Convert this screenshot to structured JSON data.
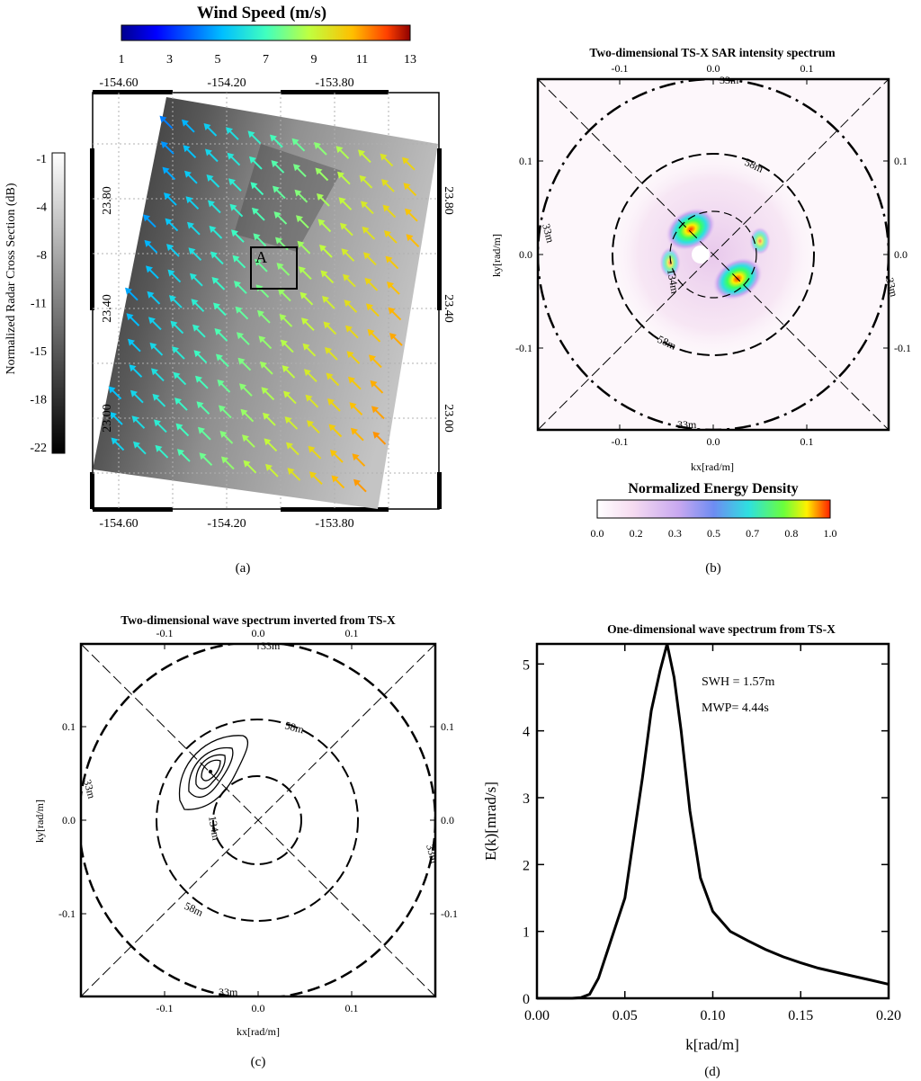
{
  "panel_a": {
    "colorbar_title": "Wind Speed (m/s)",
    "colorbar_ticks": [
      "1",
      "3",
      "5",
      "7",
      "9",
      "11",
      "13"
    ],
    "nrcs_label": "Normalized Radar Cross Section (dB)",
    "nrcs_ticks": [
      "-1",
      "-4",
      "-8",
      "-11",
      "-15",
      "-18",
      "-22"
    ],
    "lon_ticks": [
      "-154.60",
      "-154.20",
      "-153.80"
    ],
    "lat_ticks": [
      "23.80",
      "23.40",
      "23.00"
    ],
    "box_label": "A",
    "caption": "(a)"
  },
  "panel_b": {
    "title": "Two-dimensional TS-X SAR intensity spectrum",
    "xlabel": "kx[rad/m]",
    "ylabel": "ky[rad/m]",
    "ticks": [
      "-0.1",
      "0.0",
      "0.1"
    ],
    "ring_labels": [
      "33m",
      "58m",
      "134m"
    ],
    "colorbar_title": "Normalized Energy Density",
    "colorbar_ticks": [
      "0.0",
      "0.2",
      "0.3",
      "0.5",
      "0.7",
      "0.8",
      "1.0"
    ],
    "caption": "(b)"
  },
  "panel_c": {
    "title": "Two-dimensional wave spectrum inverted from TS-X",
    "xlabel": "kx[rad/m]",
    "ylabel": "ky[rad/m]",
    "ticks": [
      "-0.1",
      "0.0",
      "0.1"
    ],
    "ring_labels": [
      "33m",
      "58m",
      "134m"
    ],
    "caption": "(c)"
  },
  "chart_data": {
    "type": "line",
    "title": "One-dimensional wave spectrum from TS-X",
    "xlabel": "k[rad/m]",
    "ylabel": "E(k)[mrad/s]",
    "xlim": [
      0,
      0.2
    ],
    "ylim": [
      0,
      5.3
    ],
    "xticks": [
      "0.00",
      "0.05",
      "0.10",
      "0.15",
      "0.20"
    ],
    "yticks": [
      "0",
      "1",
      "2",
      "3",
      "4",
      "5"
    ],
    "x": [
      0.0,
      0.02,
      0.025,
      0.03,
      0.035,
      0.04,
      0.045,
      0.05,
      0.055,
      0.06,
      0.065,
      0.07,
      0.074,
      0.078,
      0.082,
      0.087,
      0.093,
      0.1,
      0.11,
      0.12,
      0.13,
      0.14,
      0.15,
      0.16,
      0.17,
      0.18,
      0.19,
      0.2
    ],
    "y": [
      0.0,
      0.0,
      0.01,
      0.06,
      0.3,
      0.7,
      1.1,
      1.5,
      2.4,
      3.3,
      4.3,
      4.9,
      5.3,
      4.8,
      4.0,
      2.8,
      1.8,
      1.3,
      1.0,
      0.86,
      0.73,
      0.62,
      0.53,
      0.45,
      0.39,
      0.33,
      0.27,
      0.21
    ],
    "annotations": [
      "SWH = 1.57m",
      "MWP= 4.44s"
    ],
    "caption": "(d)"
  },
  "colors": {
    "jet": [
      "#00008f",
      "#0000ff",
      "#00bfff",
      "#40ffbf",
      "#bfff40",
      "#ffbf00",
      "#ff4000",
      "#8f0000"
    ],
    "energy": [
      "#ffffff",
      "#f6dcf1",
      "#c8a8f0",
      "#6e8cf2",
      "#2ee0e0",
      "#6aff3c",
      "#fff000",
      "#ff2000"
    ],
    "nrcs": [
      "#ffffff",
      "#000000"
    ]
  }
}
